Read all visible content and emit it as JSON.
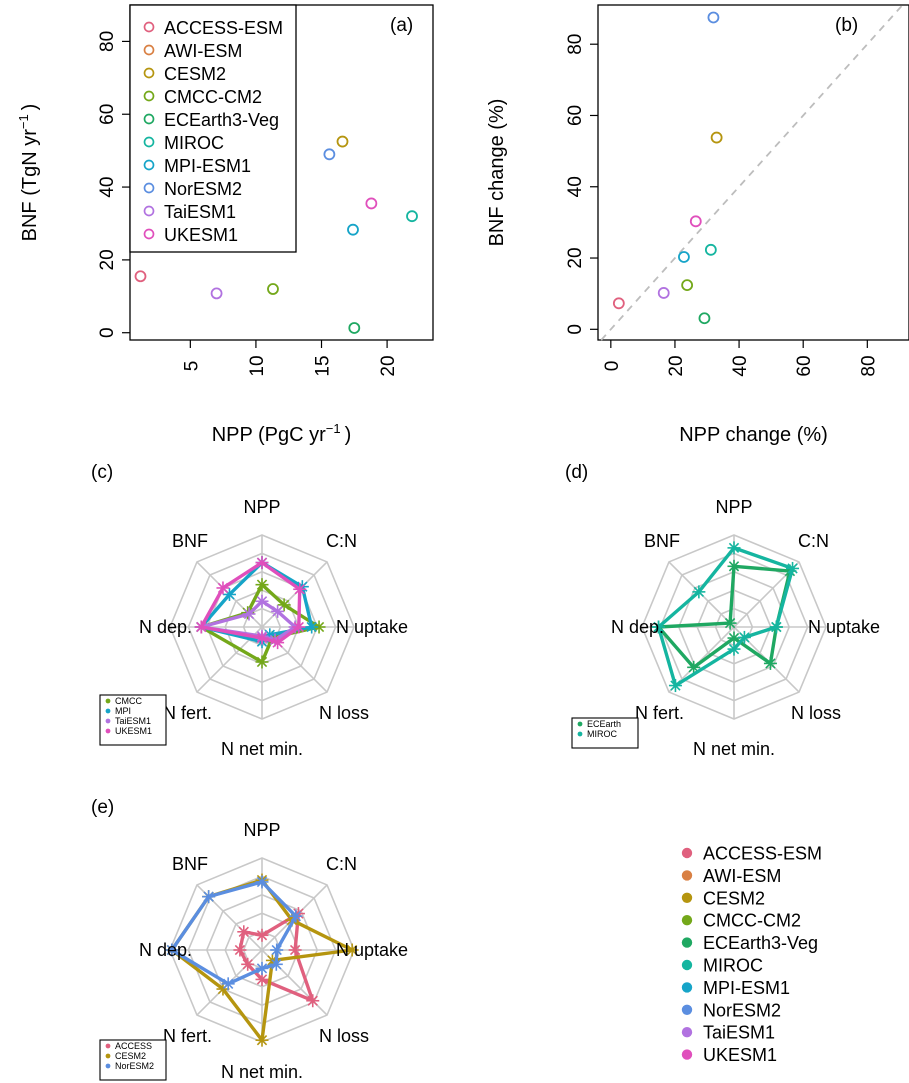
{
  "models": [
    {
      "name": "ACCESS-ESM",
      "color": "#E0607E"
    },
    {
      "name": "AWI-ESM",
      "color": "#D98043"
    },
    {
      "name": "CESM2",
      "color": "#B5950F"
    },
    {
      "name": "CMCC-CM2",
      "color": "#74A81A"
    },
    {
      "name": "ECEarth3-Veg",
      "color": "#1FA862"
    },
    {
      "name": "MIROC",
      "color": "#15B5A0"
    },
    {
      "name": "MPI-ESM1",
      "color": "#16A4C8"
    },
    {
      "name": "NorESM2",
      "color": "#5B8EE0"
    },
    {
      "name": "TaiESM1",
      "color": "#B172E0"
    },
    {
      "name": "UKESM1",
      "color": "#E04FBC"
    }
  ],
  "chart_data": [
    {
      "type": "scatter",
      "panel_label": "(a)",
      "xlabel": "NPP (PgC  yr",
      "xlabel_sup": "−1",
      "xlabel_end": ")",
      "ylabel": "BNF (TgN  yr",
      "ylabel_sup": "−1",
      "ylabel_end": ")",
      "xlim": [
        0.4,
        23.5
      ],
      "ylim": [
        -2,
        90
      ],
      "xticks": [
        5,
        10,
        15,
        20
      ],
      "yticks": [
        0,
        20,
        40,
        60,
        80
      ],
      "legend": "top-left",
      "points": [
        {
          "model": "ACCESS-ESM",
          "x": 1.2,
          "y": 15.5
        },
        {
          "model": "TaiESM1",
          "x": 7.0,
          "y": 10.8
        },
        {
          "model": "CMCC-CM2",
          "x": 11.3,
          "y": 12.0
        },
        {
          "model": "NorESM2",
          "x": 15.6,
          "y": 49.0
        },
        {
          "model": "CESM2",
          "x": 16.6,
          "y": 52.5
        },
        {
          "model": "MPI-ESM1",
          "x": 17.4,
          "y": 28.3
        },
        {
          "model": "ECEarth3-Veg",
          "x": 17.5,
          "y": 1.3
        },
        {
          "model": "UKESM1",
          "x": 18.8,
          "y": 35.5
        },
        {
          "model": "MIROC",
          "x": 21.9,
          "y": 32.0
        }
      ]
    },
    {
      "type": "scatter",
      "panel_label": "(b)",
      "xlabel": "NPP change (%)",
      "ylabel": "BNF change (%)",
      "xlim": [
        -4,
        93
      ],
      "ylim": [
        -3,
        91
      ],
      "xticks": [
        0,
        20,
        40,
        60,
        80
      ],
      "yticks": [
        0,
        20,
        40,
        60,
        80
      ],
      "reference_line": "1:1 dashed",
      "points": [
        {
          "model": "ACCESS-ESM",
          "x": 2.5,
          "y": 7.3
        },
        {
          "model": "TaiESM1",
          "x": 16.5,
          "y": 10.2
        },
        {
          "model": "MPI-ESM1",
          "x": 22.8,
          "y": 20.3
        },
        {
          "model": "CMCC-CM2",
          "x": 23.8,
          "y": 12.4
        },
        {
          "model": "UKESM1",
          "x": 26.5,
          "y": 30.3
        },
        {
          "model": "ECEarth3-Veg",
          "x": 29.2,
          "y": 3.1
        },
        {
          "model": "MIROC",
          "x": 31.2,
          "y": 22.3
        },
        {
          "model": "NorESM2",
          "x": 32.0,
          "y": 87.5
        },
        {
          "model": "CESM2",
          "x": 33.0,
          "y": 53.8
        }
      ]
    },
    {
      "type": "radar",
      "panel_label": "(c)",
      "axes": [
        "NPP",
        "C:N",
        "N uptake",
        "N loss",
        "N net min.",
        "N fert.",
        "N dep.",
        "BNF"
      ],
      "rmax": 5,
      "legend": "bottom-left",
      "series": [
        {
          "name": "CMCC",
          "model": "CMCC-CM2",
          "values": [
            2.3,
            1.7,
            3.1,
            0.8,
            1.9,
            null,
            3.3,
            1.1
          ]
        },
        {
          "name": "MPI",
          "model": "MPI-ESM1",
          "values": [
            3.5,
            3.1,
            2.7,
            0.6,
            0.8,
            null,
            3.3,
            2.5
          ]
        },
        {
          "name": "TaiESM1",
          "model": "TaiESM1",
          "values": [
            1.4,
            1.2,
            1.8,
            1.0,
            0.5,
            null,
            3.3,
            1.0
          ]
        },
        {
          "name": "UKESM1",
          "model": "UKESM1",
          "values": [
            3.5,
            2.9,
            2.0,
            1.2,
            0.6,
            null,
            3.3,
            3.0
          ]
        }
      ]
    },
    {
      "type": "radar",
      "panel_label": "(d)",
      "axes": [
        "NPP",
        "C:N",
        "N uptake",
        "N loss",
        "N net min.",
        "N fert.",
        "N dep.",
        "BNF"
      ],
      "rmax": 5,
      "legend": "bottom-left",
      "series": [
        {
          "name": "ECEarth",
          "model": "ECEarth3-Veg",
          "values": [
            3.3,
            4.3,
            2.3,
            2.8,
            0.6,
            3.1,
            4.1,
            0.3
          ]
        },
        {
          "name": "MIROC",
          "model": "MIROC",
          "values": [
            4.3,
            4.5,
            2.3,
            0.8,
            1.2,
            4.5,
            4.1,
            2.7
          ]
        }
      ]
    },
    {
      "type": "radar",
      "panel_label": "(e)",
      "axes": [
        "NPP",
        "C:N",
        "N uptake",
        "N loss",
        "N net min.",
        "N fert.",
        "N dep.",
        "BNF"
      ],
      "rmax": 5,
      "legend": "bottom-left",
      "series": [
        {
          "name": "ACCESS",
          "model": "ACCESS-ESM",
          "values": [
            0.8,
            2.8,
            1.8,
            3.9,
            1.6,
            1.1,
            1.2,
            1.4
          ]
        },
        {
          "name": "CESM2",
          "model": "CESM2",
          "values": [
            3.8,
            2.3,
            4.9,
            0.8,
            4.9,
            3.0,
            4.9,
            4.1
          ]
        },
        {
          "name": "NorESM2",
          "model": "NorESM2",
          "values": [
            3.7,
            2.6,
            0.8,
            1.1,
            1.0,
            2.6,
            4.9,
            4.1
          ]
        }
      ]
    }
  ]
}
